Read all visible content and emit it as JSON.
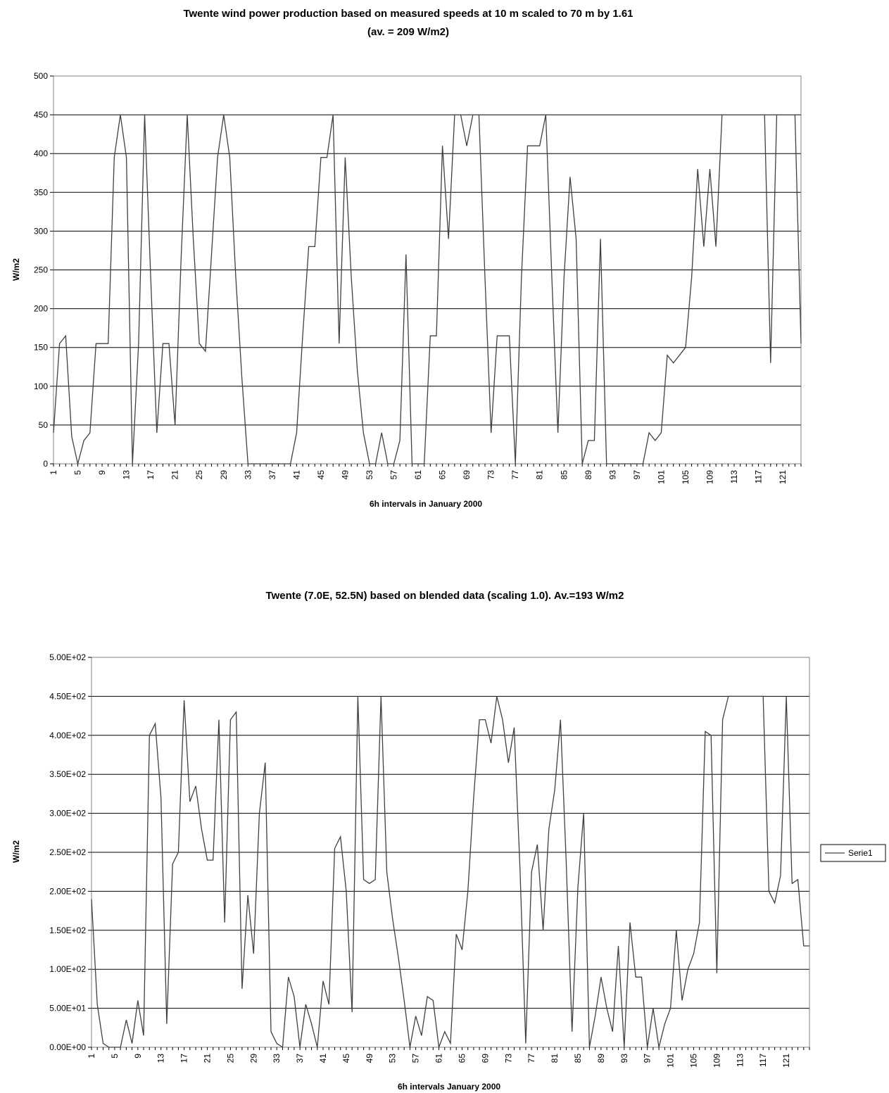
{
  "chart_data": [
    {
      "type": "line",
      "title": "Twente wind power production based on measured speeds at 10 m scaled to 70 m by 1.61",
      "subtitle": "(av. = 209 W/m2)",
      "xlabel": "6h intervals in January 2000",
      "ylabel": "W/m2",
      "ylim": [
        0,
        500
      ],
      "yticks": [
        "0",
        "50",
        "100",
        "150",
        "200",
        "250",
        "300",
        "350",
        "400",
        "450",
        "500"
      ],
      "xticks": [
        "1",
        "5",
        "9",
        "13",
        "17",
        "21",
        "25",
        "29",
        "33",
        "37",
        "41",
        "45",
        "49",
        "53",
        "57",
        "61",
        "65",
        "69",
        "73",
        "77",
        "81",
        "85",
        "89",
        "93",
        "97",
        "101",
        "105",
        "109",
        "113",
        "117",
        "121"
      ],
      "grid": true,
      "legend": "none",
      "series": [
        {
          "x": [
            1,
            2,
            3,
            4,
            5,
            6,
            7,
            8,
            9,
            10,
            11,
            12,
            13,
            14,
            15,
            16,
            17,
            18,
            19,
            20,
            21,
            22,
            23,
            24,
            25,
            26,
            27,
            28,
            29,
            30,
            31,
            32,
            33,
            34,
            35,
            36,
            37,
            38,
            39,
            40,
            41,
            42,
            43,
            44,
            45,
            46,
            47,
            48,
            49,
            50,
            51,
            52,
            53,
            54,
            55,
            56,
            57,
            58,
            59,
            60,
            61,
            62,
            63,
            64,
            65,
            66,
            67,
            68,
            69,
            70,
            71,
            72,
            73,
            74,
            75,
            76,
            77,
            78,
            79,
            80,
            81,
            82,
            83,
            84,
            85,
            86,
            87,
            88,
            89,
            90,
            91,
            92,
            93,
            94,
            95,
            96,
            97,
            98,
            99,
            100,
            101,
            102,
            103,
            104,
            105,
            106,
            107,
            108,
            109,
            110,
            111,
            112,
            113,
            114,
            115,
            116,
            117,
            118,
            119,
            120,
            121,
            122,
            123,
            124
          ],
          "values": [
            40,
            155,
            165,
            35,
            0,
            30,
            40,
            155,
            155,
            155,
            395,
            450,
            395,
            0,
            155,
            450,
            240,
            40,
            155,
            155,
            50,
            265,
            450,
            290,
            155,
            145,
            270,
            395,
            450,
            395,
            240,
            110,
            0,
            0,
            0,
            0,
            0,
            0,
            0,
            0,
            40,
            165,
            280,
            280,
            395,
            395,
            450,
            155,
            395,
            240,
            120,
            40,
            0,
            0,
            40,
            0,
            0,
            30,
            270,
            0,
            0,
            0,
            165,
            165,
            410,
            290,
            450,
            450,
            410,
            450,
            450,
            240,
            40,
            165,
            165,
            165,
            0,
            240,
            410,
            410,
            410,
            450,
            240,
            40,
            240,
            370,
            290,
            0,
            30,
            30,
            290,
            0,
            0,
            0,
            0,
            0,
            0,
            0,
            40,
            30,
            40,
            140,
            130,
            140,
            150,
            240,
            380,
            280,
            380,
            280,
            450,
            450,
            450,
            450,
            450,
            450,
            450,
            450,
            130,
            450,
            450,
            450,
            450,
            155
          ]
        }
      ]
    },
    {
      "type": "line",
      "title": "Twente (7.0E, 52.5N) based on blended data (scaling 1.0). Av.=193 W/m2",
      "xlabel": "6h intervals January 2000",
      "ylabel": "W/m2",
      "ylim": [
        0,
        500
      ],
      "yticks": [
        "0.00E+00",
        "5.00E+01",
        "1.00E+02",
        "1.50E+02",
        "2.00E+02",
        "2.50E+02",
        "3.00E+02",
        "3.50E+02",
        "4.00E+02",
        "4.50E+02",
        "5.00E+02"
      ],
      "xticks": [
        "1",
        "5",
        "9",
        "13",
        "17",
        "21",
        "25",
        "29",
        "33",
        "37",
        "41",
        "45",
        "49",
        "53",
        "57",
        "61",
        "65",
        "69",
        "73",
        "77",
        "81",
        "85",
        "89",
        "93",
        "97",
        "101",
        "105",
        "109",
        "113",
        "117",
        "121"
      ],
      "grid": true,
      "legend": "right",
      "series": [
        {
          "name": "Serie1",
          "x": [
            1,
            2,
            3,
            4,
            5,
            6,
            7,
            8,
            9,
            10,
            11,
            12,
            13,
            14,
            15,
            16,
            17,
            18,
            19,
            20,
            21,
            22,
            23,
            24,
            25,
            26,
            27,
            28,
            29,
            30,
            31,
            32,
            33,
            34,
            35,
            36,
            37,
            38,
            39,
            40,
            41,
            42,
            43,
            44,
            45,
            46,
            47,
            48,
            49,
            50,
            51,
            52,
            53,
            54,
            55,
            56,
            57,
            58,
            59,
            60,
            61,
            62,
            63,
            64,
            65,
            66,
            67,
            68,
            69,
            70,
            71,
            72,
            73,
            74,
            75,
            76,
            77,
            78,
            79,
            80,
            81,
            82,
            83,
            84,
            85,
            86,
            87,
            88,
            89,
            90,
            91,
            92,
            93,
            94,
            95,
            96,
            97,
            98,
            99,
            100,
            101,
            102,
            103,
            104,
            105,
            106,
            107,
            108,
            109,
            110,
            111,
            112,
            113,
            114,
            115,
            116,
            117,
            118,
            119,
            120,
            121,
            122,
            123,
            124,
            125
          ],
          "values": [
            190,
            55,
            5,
            0,
            0,
            0,
            35,
            5,
            60,
            15,
            400,
            415,
            320,
            30,
            235,
            250,
            445,
            315,
            335,
            280,
            240,
            240,
            420,
            160,
            420,
            430,
            75,
            195,
            120,
            300,
            365,
            20,
            5,
            0,
            90,
            65,
            0,
            55,
            30,
            0,
            85,
            55,
            255,
            270,
            200,
            45,
            450,
            215,
            210,
            215,
            450,
            225,
            165,
            115,
            60,
            0,
            40,
            15,
            65,
            60,
            0,
            20,
            5,
            145,
            125,
            200,
            320,
            420,
            420,
            390,
            450,
            420,
            365,
            410,
            230,
            5,
            225,
            260,
            150,
            280,
            330,
            420,
            235,
            20,
            205,
            300,
            0,
            40,
            90,
            50,
            20,
            130,
            0,
            160,
            90,
            90,
            0,
            50,
            0,
            30,
            50,
            150,
            60,
            100,
            120,
            160,
            405,
            400,
            95,
            420,
            450,
            450,
            450,
            450,
            450,
            450,
            450,
            200,
            185,
            220,
            450,
            210,
            215,
            130,
            130
          ]
        }
      ]
    }
  ]
}
